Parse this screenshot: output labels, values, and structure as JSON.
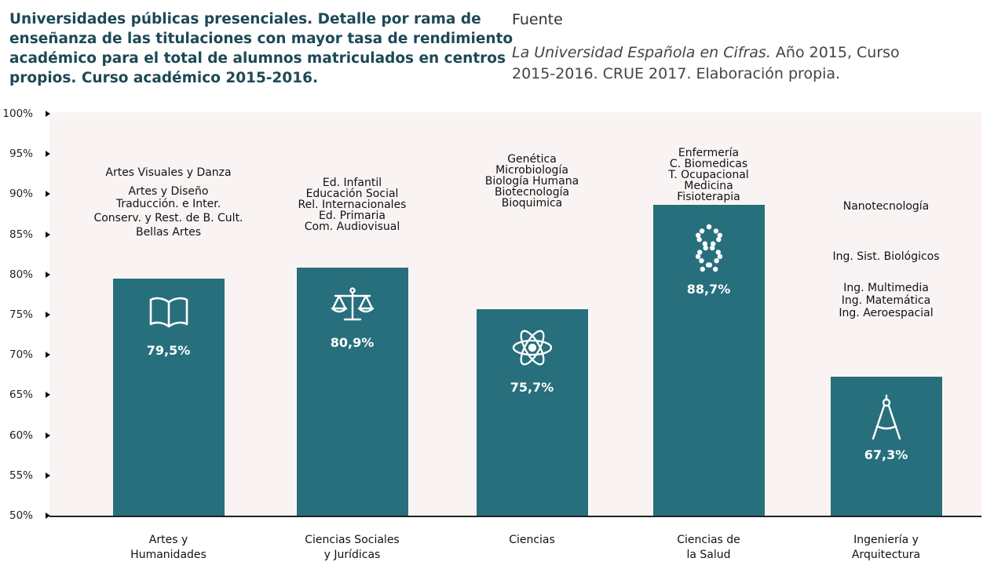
{
  "header": {
    "title_lines": [
      "Universidades públicas presenciales. Detalle por rama de",
      "enseñanza de las titulaciones con mayor tasa de rendimiento",
      "académico para el total de alumnos matriculados en centros",
      "propios. Curso académico 2015-2016."
    ],
    "source_heading": "Fuente",
    "source_italic": "La Universidad Española en Cifras.",
    "source_rest_line1": " Año 2015, Curso",
    "source_line2": "2015-2016. CRUE 2017. Elaboración propia."
  },
  "colors": {
    "bar": "#276f7c",
    "plot_background": "#f9f4f3",
    "title": "#1d4955"
  },
  "chart_data": {
    "type": "bar",
    "ylim": [
      50,
      100
    ],
    "y_ticks": [
      "50%",
      "55%",
      "60%",
      "65%",
      "70%",
      "75%",
      "80%",
      "85%",
      "90%",
      "95%",
      "100%"
    ],
    "categories": [
      [
        "Artes y",
        "Humanidades"
      ],
      [
        "Ciencias Sociales",
        "y Jurídicas"
      ],
      [
        "Ciencias"
      ],
      [
        "Ciencias de",
        "la Salud"
      ],
      [
        "Ingeniería y",
        "Arquitectura"
      ]
    ],
    "values": [
      79.5,
      80.9,
      75.7,
      88.7,
      67.3
    ],
    "value_labels": [
      "79,5%",
      "80,9%",
      "75,7%",
      "88,7%",
      "67,3%"
    ],
    "icons": [
      "book-icon",
      "scales-icon",
      "atom-icon",
      "dna-icon",
      "compass-icon"
    ],
    "degree_titles": [
      [
        "Artes Visuales y Danza",
        "Artes y Diseño",
        "Traducción. e Inter.",
        "Conserv. y Rest. de B. Cult.",
        "Bellas Artes"
      ],
      [
        "Ed. Infantil",
        "Educación Social",
        "Rel. Internacionales",
        "Ed. Primaria",
        "Com. Audiovisual"
      ],
      [
        "Genética",
        "Microbiología",
        "Biología Humana",
        "Biotecnología",
        "Bioquimica"
      ],
      [
        "Enfermería",
        "C. Biomedicas",
        "T. Ocupacional",
        "Medicina",
        "Fisioterapia"
      ],
      [
        "Nanotecnología",
        "Ing. Sist. Biológicos",
        "Ing. Multimedia",
        "Ing. Matemática",
        "Ing. Aeroespacial"
      ]
    ]
  }
}
